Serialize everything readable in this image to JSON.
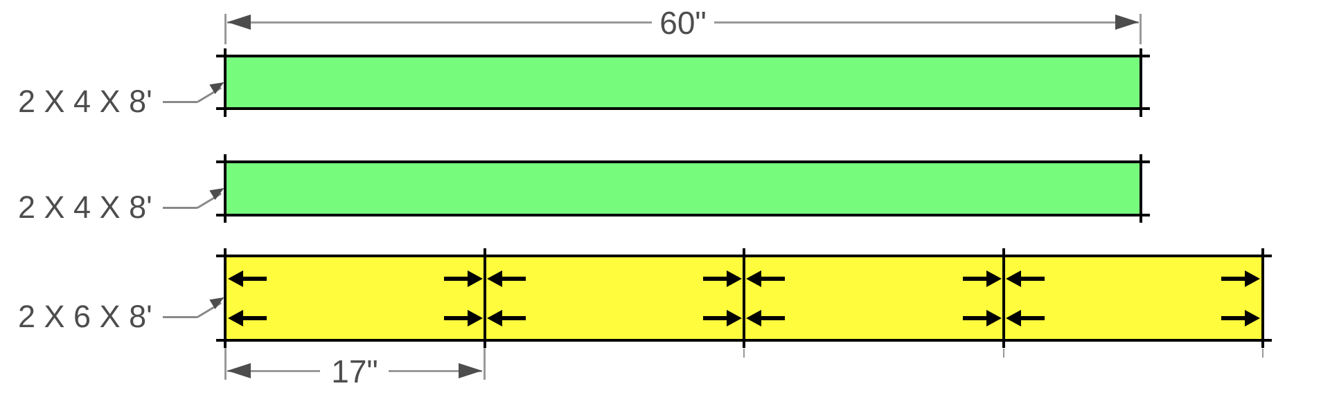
{
  "diagram": {
    "type": "lumber-cut-diagram",
    "boards": [
      {
        "label": "2 X 4 X 8'",
        "piece_length_label": "60\"",
        "fill_color": "#77FB7D"
      },
      {
        "label": "2 X 4 X 8'",
        "piece_length_label": "60\"",
        "fill_color": "#77FB7D"
      },
      {
        "label": "2 X 6 X 8'",
        "segment_length_label": "17\"",
        "fill_color": "#FFFB3D",
        "segment_boundaries_inches": [
          0,
          17,
          34,
          51,
          68
        ]
      }
    ],
    "dimensions": {
      "top_label": "60\"",
      "bottom_label": "17\""
    },
    "colors": {
      "green_board": "#77FB7D",
      "yellow_board": "#FFFB3D",
      "outline": "#000000",
      "dimension_line": "#999999",
      "dimension_arrow": "#4D4D4D",
      "label_text": "#4D4D4D",
      "leader_line": "#888888",
      "cut_arrow": "#000000"
    }
  }
}
